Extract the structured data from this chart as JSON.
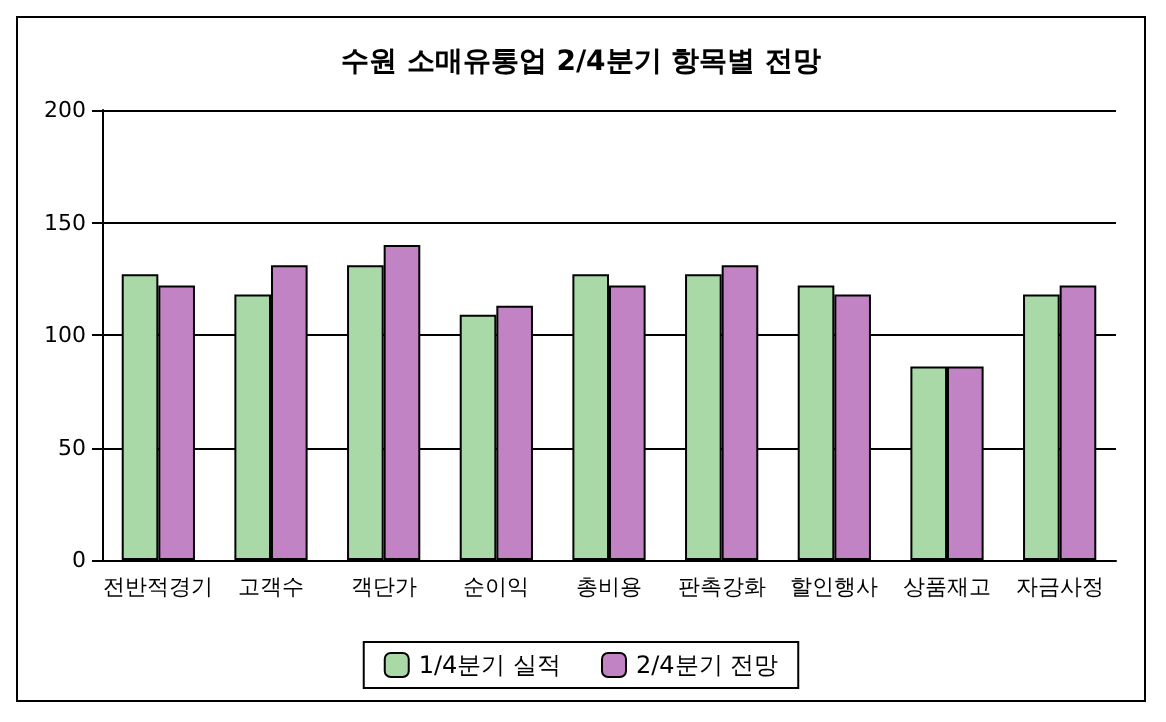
{
  "chart_data": {
    "type": "bar",
    "title": "수원 소매유통업 2/4분기 항목별 전망",
    "categories": [
      "전반적경기",
      "고객수",
      "객단가",
      "순이익",
      "총비용",
      "판촉강화",
      "할인행사",
      "상품재고",
      "자금사정"
    ],
    "series": [
      {
        "name": "1/4분기 실적",
        "color": "#aad9a8",
        "values": [
          127,
          118,
          131,
          109,
          127,
          127,
          122,
          86,
          118
        ]
      },
      {
        "name": "2/4분기 전망",
        "color": "#c283c4",
        "values": [
          122,
          131,
          140,
          113,
          122,
          131,
          118,
          86,
          122
        ]
      }
    ],
    "ylim": [
      0,
      200
    ],
    "yticks": [
      0,
      50,
      100,
      150,
      200
    ],
    "grid": "y",
    "legend": "bottom"
  }
}
